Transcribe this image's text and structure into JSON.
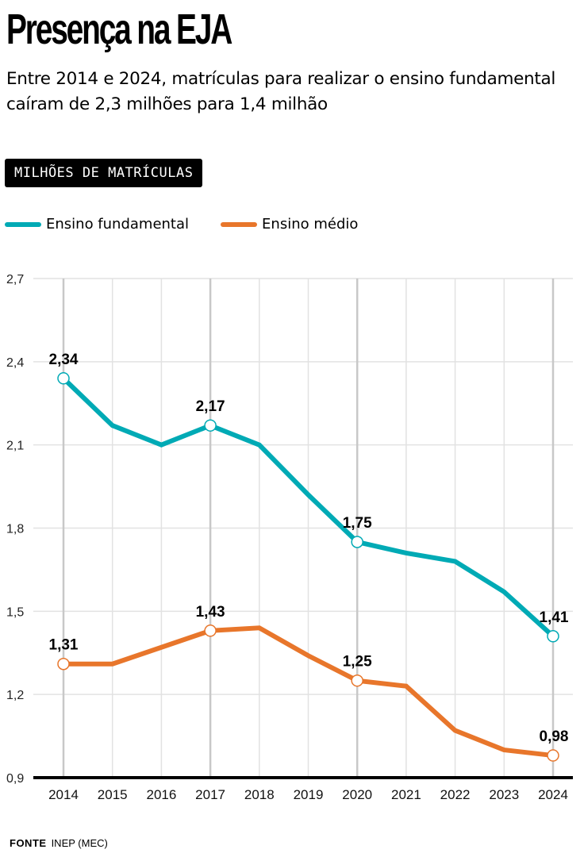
{
  "header": {
    "title": "Presença na EJA",
    "subtitle": "Entre 2014 e 2024, matrículas para realizar o ensino fundamental caíram de 2,3 milhões para 1,4 milhão",
    "unit_badge": "MILHÕES DE MATRÍCULAS"
  },
  "legend": [
    {
      "label": "Ensino fundamental",
      "color": "#00aab5"
    },
    {
      "label": "Ensino médio",
      "color": "#e8762b"
    }
  ],
  "chart_data": {
    "type": "line",
    "title": "Presença na EJA",
    "ylabel": "Milhões de matrículas",
    "xlabel": "",
    "x": [
      "2014",
      "2015",
      "2016",
      "2017",
      "2018",
      "2019",
      "2020",
      "2021",
      "2022",
      "2023",
      "2024"
    ],
    "ylim": [
      0.9,
      2.7
    ],
    "yticks": [
      0.9,
      1.2,
      1.5,
      1.8,
      2.1,
      2.4,
      2.7
    ],
    "ytick_labels": [
      "0,9",
      "1,2",
      "1,5",
      "1,8",
      "2,1",
      "2,4",
      "2,7"
    ],
    "grid": true,
    "legend_position": "top-left",
    "series": [
      {
        "name": "Ensino fundamental",
        "color": "#00aab5",
        "values": [
          2.34,
          2.17,
          2.1,
          2.17,
          2.1,
          1.92,
          1.75,
          1.71,
          1.68,
          1.57,
          1.41
        ],
        "labeled_points": [
          {
            "index": 0,
            "label": "2,34"
          },
          {
            "index": 3,
            "label": "2,17"
          },
          {
            "index": 6,
            "label": "1,75"
          },
          {
            "index": 10,
            "label": "1,41"
          }
        ]
      },
      {
        "name": "Ensino médio",
        "color": "#e8762b",
        "values": [
          1.31,
          1.31,
          1.37,
          1.43,
          1.44,
          1.34,
          1.25,
          1.23,
          1.07,
          1.0,
          0.98
        ],
        "labeled_points": [
          {
            "index": 0,
            "label": "1,31"
          },
          {
            "index": 3,
            "label": "1,43"
          },
          {
            "index": 6,
            "label": "1,25"
          },
          {
            "index": 10,
            "label": "0,98"
          }
        ]
      }
    ],
    "highlight_years": [
      "2014",
      "2017",
      "2020",
      "2024"
    ]
  },
  "footer": {
    "source_label": "FONTE",
    "source_text": "INEP (MEC)"
  }
}
